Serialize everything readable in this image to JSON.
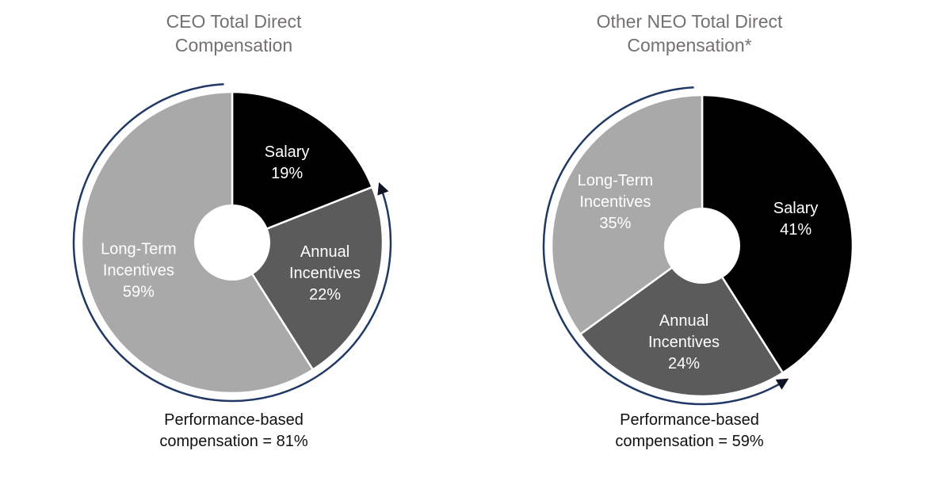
{
  "page": {
    "background": "#ffffff",
    "title_color": "#757070",
    "caption_color": "#111111"
  },
  "chart_data": [
    {
      "id": "ceo",
      "type": "pie",
      "donut": true,
      "title": "CEO Total Direct Compensation",
      "title_lines": [
        "CEO Total Direct",
        "Compensation"
      ],
      "slices": [
        {
          "label": "Salary",
          "label_lines": [
            "Salary"
          ],
          "value": 19,
          "pct_label": "19%",
          "color": "#000000",
          "text_color": "#ffffff"
        },
        {
          "label": "Annual Incentives",
          "label_lines": [
            "Annual",
            "Incentives"
          ],
          "value": 22,
          "pct_label": "22%",
          "color": "#5b5b5b",
          "text_color": "#ffffff"
        },
        {
          "label": "Long-Term Incentives",
          "label_lines": [
            "Long-Term",
            "Incentives"
          ],
          "value": 59,
          "pct_label": "59%",
          "color": "#a9a9a9",
          "text_color": "#ffffff"
        }
      ],
      "performance_arc": {
        "coverage_pct": 81,
        "covers": [
          "Annual Incentives",
          "Long-Term Incentives"
        ],
        "line_color": "#1f3864",
        "arrow_color": "#101523"
      },
      "caption": "Performance-based compensation = 81%",
      "caption_lines": [
        "Performance-based",
        "compensation = 81%"
      ]
    },
    {
      "id": "other-neo",
      "type": "pie",
      "donut": true,
      "title": "Other NEO Total Direct Compensation*",
      "title_lines": [
        "Other NEO Total Direct",
        "Compensation*"
      ],
      "slices": [
        {
          "label": "Salary",
          "label_lines": [
            "Salary"
          ],
          "value": 41,
          "pct_label": "41%",
          "color": "#000000",
          "text_color": "#ffffff"
        },
        {
          "label": "Annual Incentives",
          "label_lines": [
            "Annual",
            "Incentives"
          ],
          "value": 24,
          "pct_label": "24%",
          "color": "#5b5b5b",
          "text_color": "#ffffff"
        },
        {
          "label": "Long-Term Incentives",
          "label_lines": [
            "Long-Term",
            "Incentives"
          ],
          "value": 35,
          "pct_label": "35%",
          "color": "#a9a9a9",
          "text_color": "#ffffff"
        }
      ],
      "performance_arc": {
        "coverage_pct": 59,
        "covers": [
          "Annual Incentives",
          "Long-Term Incentives"
        ],
        "line_color": "#1f3864",
        "arrow_color": "#101523"
      },
      "caption": "Performance-based compensation = 59%",
      "caption_lines": [
        "Performance-based",
        "compensation = 59%"
      ]
    }
  ]
}
